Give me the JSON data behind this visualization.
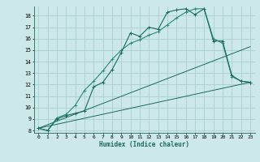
{
  "bg_color": "#cce8e8",
  "grid_color": "#aad0d0",
  "line_color_dark": "#1a6b5a",
  "line_color_mid": "#2a8a70",
  "xlabel": "Humidex (Indice chaleur)",
  "xlim": [
    -0.5,
    23.5
  ],
  "ylim": [
    7.8,
    18.8
  ],
  "yticks": [
    8,
    9,
    10,
    11,
    12,
    13,
    14,
    15,
    16,
    17,
    18
  ],
  "xticks": [
    0,
    1,
    2,
    3,
    4,
    5,
    6,
    7,
    8,
    9,
    10,
    11,
    12,
    13,
    14,
    15,
    16,
    17,
    18,
    19,
    20,
    21,
    22,
    23
  ],
  "line1_x": [
    0,
    1,
    2,
    3,
    4,
    5,
    6,
    7,
    8,
    9,
    10,
    11,
    12,
    13,
    14,
    15,
    16,
    17,
    18,
    19,
    20,
    21,
    22,
    23
  ],
  "line1_y": [
    8.2,
    8.0,
    9.0,
    9.3,
    9.5,
    9.7,
    11.8,
    12.2,
    13.3,
    14.8,
    16.5,
    16.2,
    17.0,
    16.8,
    18.3,
    18.5,
    18.6,
    18.1,
    18.6,
    15.8,
    15.8,
    12.8,
    12.3,
    12.2
  ],
  "line2_x": [
    0,
    1,
    2,
    3,
    4,
    5,
    6,
    7,
    8,
    9,
    10,
    11,
    12,
    13,
    14,
    15,
    16,
    17,
    18,
    19,
    20,
    21,
    22,
    23
  ],
  "line2_y": [
    8.2,
    8.0,
    9.1,
    9.4,
    10.2,
    11.5,
    12.3,
    13.2,
    14.2,
    15.0,
    15.6,
    15.9,
    16.3,
    16.6,
    17.2,
    17.8,
    18.3,
    18.6,
    18.6,
    16.0,
    15.6,
    12.7,
    12.3,
    12.2
  ],
  "line3_x": [
    0,
    23
  ],
  "line3_y": [
    8.2,
    12.2
  ],
  "line4_x": [
    0,
    23
  ],
  "line4_y": [
    8.2,
    15.3
  ]
}
